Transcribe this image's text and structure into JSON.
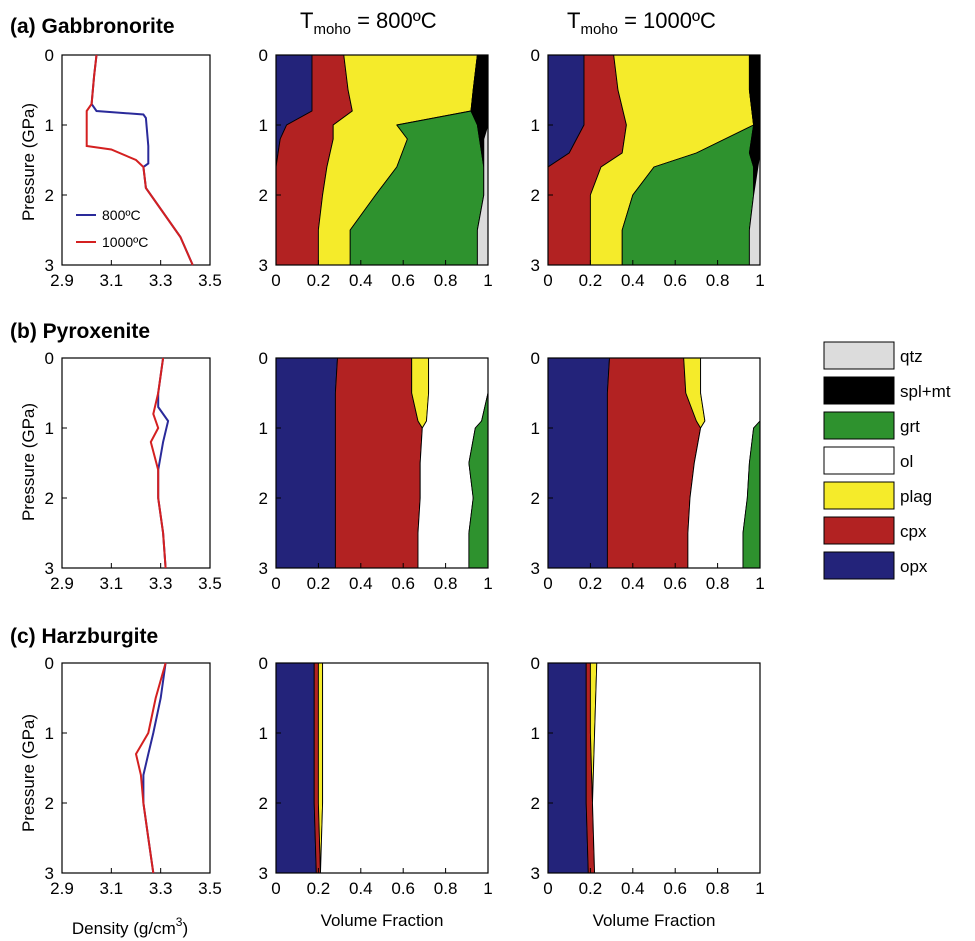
{
  "column_titles": {
    "t800_main": "T",
    "t800_sub": "moho",
    "t800_rest": " = 800ºC",
    "t1000_main": "T",
    "t1000_sub": "moho",
    "t1000_rest": " = 1000ºC"
  },
  "axis_labels": {
    "pressure": "Pressure (GPa)",
    "density_main": "Density (g/cm",
    "density_sup": "3",
    "density_end": ")",
    "volume_fraction": "Volume Fraction"
  },
  "legend": {
    "items": [
      {
        "label": "qtz",
        "color": "#dcdcdc"
      },
      {
        "label": "spl+mt",
        "color": "#000000"
      },
      {
        "label": "grt",
        "color": "#2e922e"
      },
      {
        "label": "ol",
        "color": "#ffffff"
      },
      {
        "label": "plag",
        "color": "#f5eb2a"
      },
      {
        "label": "cpx",
        "color": "#b22222"
      },
      {
        "label": "opx",
        "color": "#23237a"
      }
    ]
  },
  "chart_data": {
    "type": "area",
    "density_ticks": [
      "2.9",
      "3.1",
      "3.3",
      "3.5"
    ],
    "density_xlim": [
      2.9,
      3.5
    ],
    "fraction_ticks": [
      "0",
      "0.2",
      "0.4",
      "0.6",
      "0.8",
      "1"
    ],
    "fraction_xlim": [
      0,
      1
    ],
    "pressure_ticks": [
      "0",
      "1",
      "2",
      "3"
    ],
    "pressure_ylim": [
      0,
      3
    ],
    "density_series": [
      {
        "name": "800ºC",
        "color": "#2a2a9a"
      },
      {
        "name": "1000ºC",
        "color": "#d42020"
      }
    ],
    "rows": [
      {
        "label": "(a) Gabbronorite",
        "density": {
          "series": [
            {
              "points": [
                [
                  3.04,
                  0
                ],
                [
                  3.03,
                  0.3
                ],
                [
                  3.02,
                  0.7
                ],
                [
                  3.04,
                  0.8
                ],
                [
                  3.23,
                  0.85
                ],
                [
                  3.24,
                  0.9
                ],
                [
                  3.25,
                  1.3
                ],
                [
                  3.25,
                  1.55
                ],
                [
                  3.23,
                  1.6
                ],
                [
                  3.24,
                  1.9
                ],
                [
                  3.3,
                  2.2
                ],
                [
                  3.38,
                  2.6
                ],
                [
                  3.43,
                  3.0
                ]
              ]
            },
            {
              "points": [
                [
                  3.04,
                  0
                ],
                [
                  3.03,
                  0.3
                ],
                [
                  3.02,
                  0.7
                ],
                [
                  3.0,
                  0.8
                ],
                [
                  3.0,
                  1.3
                ],
                [
                  3.1,
                  1.35
                ],
                [
                  3.2,
                  1.5
                ],
                [
                  3.23,
                  1.6
                ],
                [
                  3.24,
                  1.9
                ],
                [
                  3.3,
                  2.2
                ],
                [
                  3.38,
                  2.6
                ],
                [
                  3.43,
                  3.0
                ]
              ]
            }
          ],
          "legend_shown": true
        },
        "t800": {
          "pressure": [
            0,
            0.5,
            0.8,
            1.0,
            1.2,
            1.6,
            2.0,
            2.5,
            3.0
          ],
          "phases": {
            "opx": [
              0.17,
              0.17,
              0.17,
              0.05,
              0.02,
              0.0,
              0.0,
              0.0,
              0.0
            ],
            "cpx": [
              0.15,
              0.17,
              0.19,
              0.22,
              0.25,
              0.24,
              0.22,
              0.2,
              0.2
            ],
            "plag": [
              0.63,
              0.59,
              0.56,
              0.3,
              0.35,
              0.33,
              0.25,
              0.15,
              0.15
            ],
            "grt": [
              0.0,
              0.0,
              0.0,
              0.38,
              0.34,
              0.41,
              0.51,
              0.6,
              0.6
            ],
            "spl+mt": [
              0.05,
              0.07,
              0.08,
              0.05,
              0.02,
              0.0,
              0.0,
              0.0,
              0.0
            ],
            "qtz": [
              0.0,
              0.0,
              0.0,
              0.0,
              0.02,
              0.02,
              0.02,
              0.05,
              0.05
            ]
          }
        },
        "t1000": {
          "pressure": [
            0,
            0.5,
            1.0,
            1.4,
            1.6,
            2.0,
            2.5,
            3.0
          ],
          "phases": {
            "opx": [
              0.17,
              0.17,
              0.17,
              0.1,
              0.0,
              0.0,
              0.0,
              0.0
            ],
            "cpx": [
              0.14,
              0.16,
              0.2,
              0.25,
              0.25,
              0.2,
              0.2,
              0.2
            ],
            "plag": [
              0.64,
              0.62,
              0.6,
              0.35,
              0.25,
              0.2,
              0.15,
              0.15
            ],
            "grt": [
              0.0,
              0.0,
              0.0,
              0.25,
              0.47,
              0.57,
              0.6,
              0.6
            ],
            "spl+mt": [
              0.05,
              0.05,
              0.03,
              0.05,
              0.02,
              0.0,
              0.0,
              0.0
            ],
            "qtz": [
              0.0,
              0.0,
              0.0,
              0.0,
              0.01,
              0.03,
              0.05,
              0.05
            ]
          }
        }
      },
      {
        "label": "(b) Pyroxenite",
        "density": {
          "series": [
            {
              "points": [
                [
                  3.31,
                  0
                ],
                [
                  3.29,
                  0.5
                ],
                [
                  3.29,
                  0.7
                ],
                [
                  3.33,
                  0.9
                ],
                [
                  3.31,
                  1.2
                ],
                [
                  3.29,
                  1.6
                ],
                [
                  3.29,
                  2.0
                ],
                [
                  3.31,
                  2.5
                ],
                [
                  3.32,
                  3.0
                ]
              ]
            },
            {
              "points": [
                [
                  3.31,
                  0
                ],
                [
                  3.29,
                  0.5
                ],
                [
                  3.27,
                  0.8
                ],
                [
                  3.29,
                  1.0
                ],
                [
                  3.26,
                  1.2
                ],
                [
                  3.29,
                  1.6
                ],
                [
                  3.29,
                  2.0
                ],
                [
                  3.31,
                  2.5
                ],
                [
                  3.32,
                  3.0
                ]
              ]
            }
          ],
          "legend_shown": false
        },
        "t800": {
          "pressure": [
            0,
            0.5,
            0.9,
            1.0,
            1.5,
            2.0,
            2.5,
            3.0
          ],
          "phases": {
            "opx": [
              0.29,
              0.28,
              0.28,
              0.28,
              0.28,
              0.28,
              0.28,
              0.28
            ],
            "cpx": [
              0.35,
              0.36,
              0.39,
              0.41,
              0.4,
              0.4,
              0.39,
              0.39
            ],
            "plag": [
              0.08,
              0.08,
              0.04,
              0.0,
              0.0,
              0.0,
              0.0,
              0.0
            ],
            "ol": [
              0.28,
              0.28,
              0.26,
              0.25,
              0.23,
              0.25,
              0.24,
              0.24
            ],
            "grt": [
              0.0,
              0.0,
              0.03,
              0.06,
              0.09,
              0.07,
              0.09,
              0.09
            ]
          }
        },
        "t1000": {
          "pressure": [
            0,
            0.5,
            0.9,
            1.0,
            1.5,
            2.0,
            2.5,
            3.0
          ],
          "phases": {
            "opx": [
              0.29,
              0.28,
              0.28,
              0.28,
              0.28,
              0.28,
              0.28,
              0.28
            ],
            "cpx": [
              0.35,
              0.37,
              0.42,
              0.44,
              0.41,
              0.39,
              0.38,
              0.38
            ],
            "plag": [
              0.08,
              0.07,
              0.04,
              0.0,
              0.0,
              0.0,
              0.0,
              0.0
            ],
            "ol": [
              0.28,
              0.28,
              0.26,
              0.25,
              0.26,
              0.27,
              0.26,
              0.26
            ],
            "grt": [
              0.0,
              0.0,
              0.0,
              0.03,
              0.05,
              0.06,
              0.08,
              0.08
            ]
          }
        }
      },
      {
        "label": "(c) Harzburgite",
        "density": {
          "series": [
            {
              "points": [
                [
                  3.32,
                  0
                ],
                [
                  3.3,
                  0.5
                ],
                [
                  3.27,
                  1.0
                ],
                [
                  3.25,
                  1.3
                ],
                [
                  3.23,
                  1.6
                ],
                [
                  3.23,
                  2.0
                ],
                [
                  3.25,
                  2.5
                ],
                [
                  3.27,
                  3.0
                ]
              ]
            },
            {
              "points": [
                [
                  3.32,
                  0
                ],
                [
                  3.28,
                  0.5
                ],
                [
                  3.25,
                  1.0
                ],
                [
                  3.2,
                  1.3
                ],
                [
                  3.22,
                  1.6
                ],
                [
                  3.23,
                  2.0
                ],
                [
                  3.25,
                  2.5
                ],
                [
                  3.27,
                  3.0
                ]
              ]
            }
          ],
          "legend_shown": false
        },
        "t800": {
          "pressure": [
            0,
            1.0,
            2.0,
            3.0
          ],
          "phases": {
            "opx": [
              0.18,
              0.18,
              0.18,
              0.19
            ],
            "cpx": [
              0.02,
              0.02,
              0.02,
              0.02
            ],
            "plag": [
              0.02,
              0.02,
              0.02,
              0.0
            ],
            "ol": [
              0.78,
              0.78,
              0.78,
              0.79
            ]
          }
        },
        "t1000": {
          "pressure": [
            0,
            1.0,
            2.0,
            3.0
          ],
          "phases": {
            "opx": [
              0.18,
              0.18,
              0.18,
              0.19
            ],
            "cpx": [
              0.02,
              0.02,
              0.03,
              0.03
            ],
            "plag": [
              0.03,
              0.02,
              0.0,
              0.0
            ],
            "ol": [
              0.77,
              0.78,
              0.79,
              0.78
            ]
          }
        }
      }
    ]
  }
}
